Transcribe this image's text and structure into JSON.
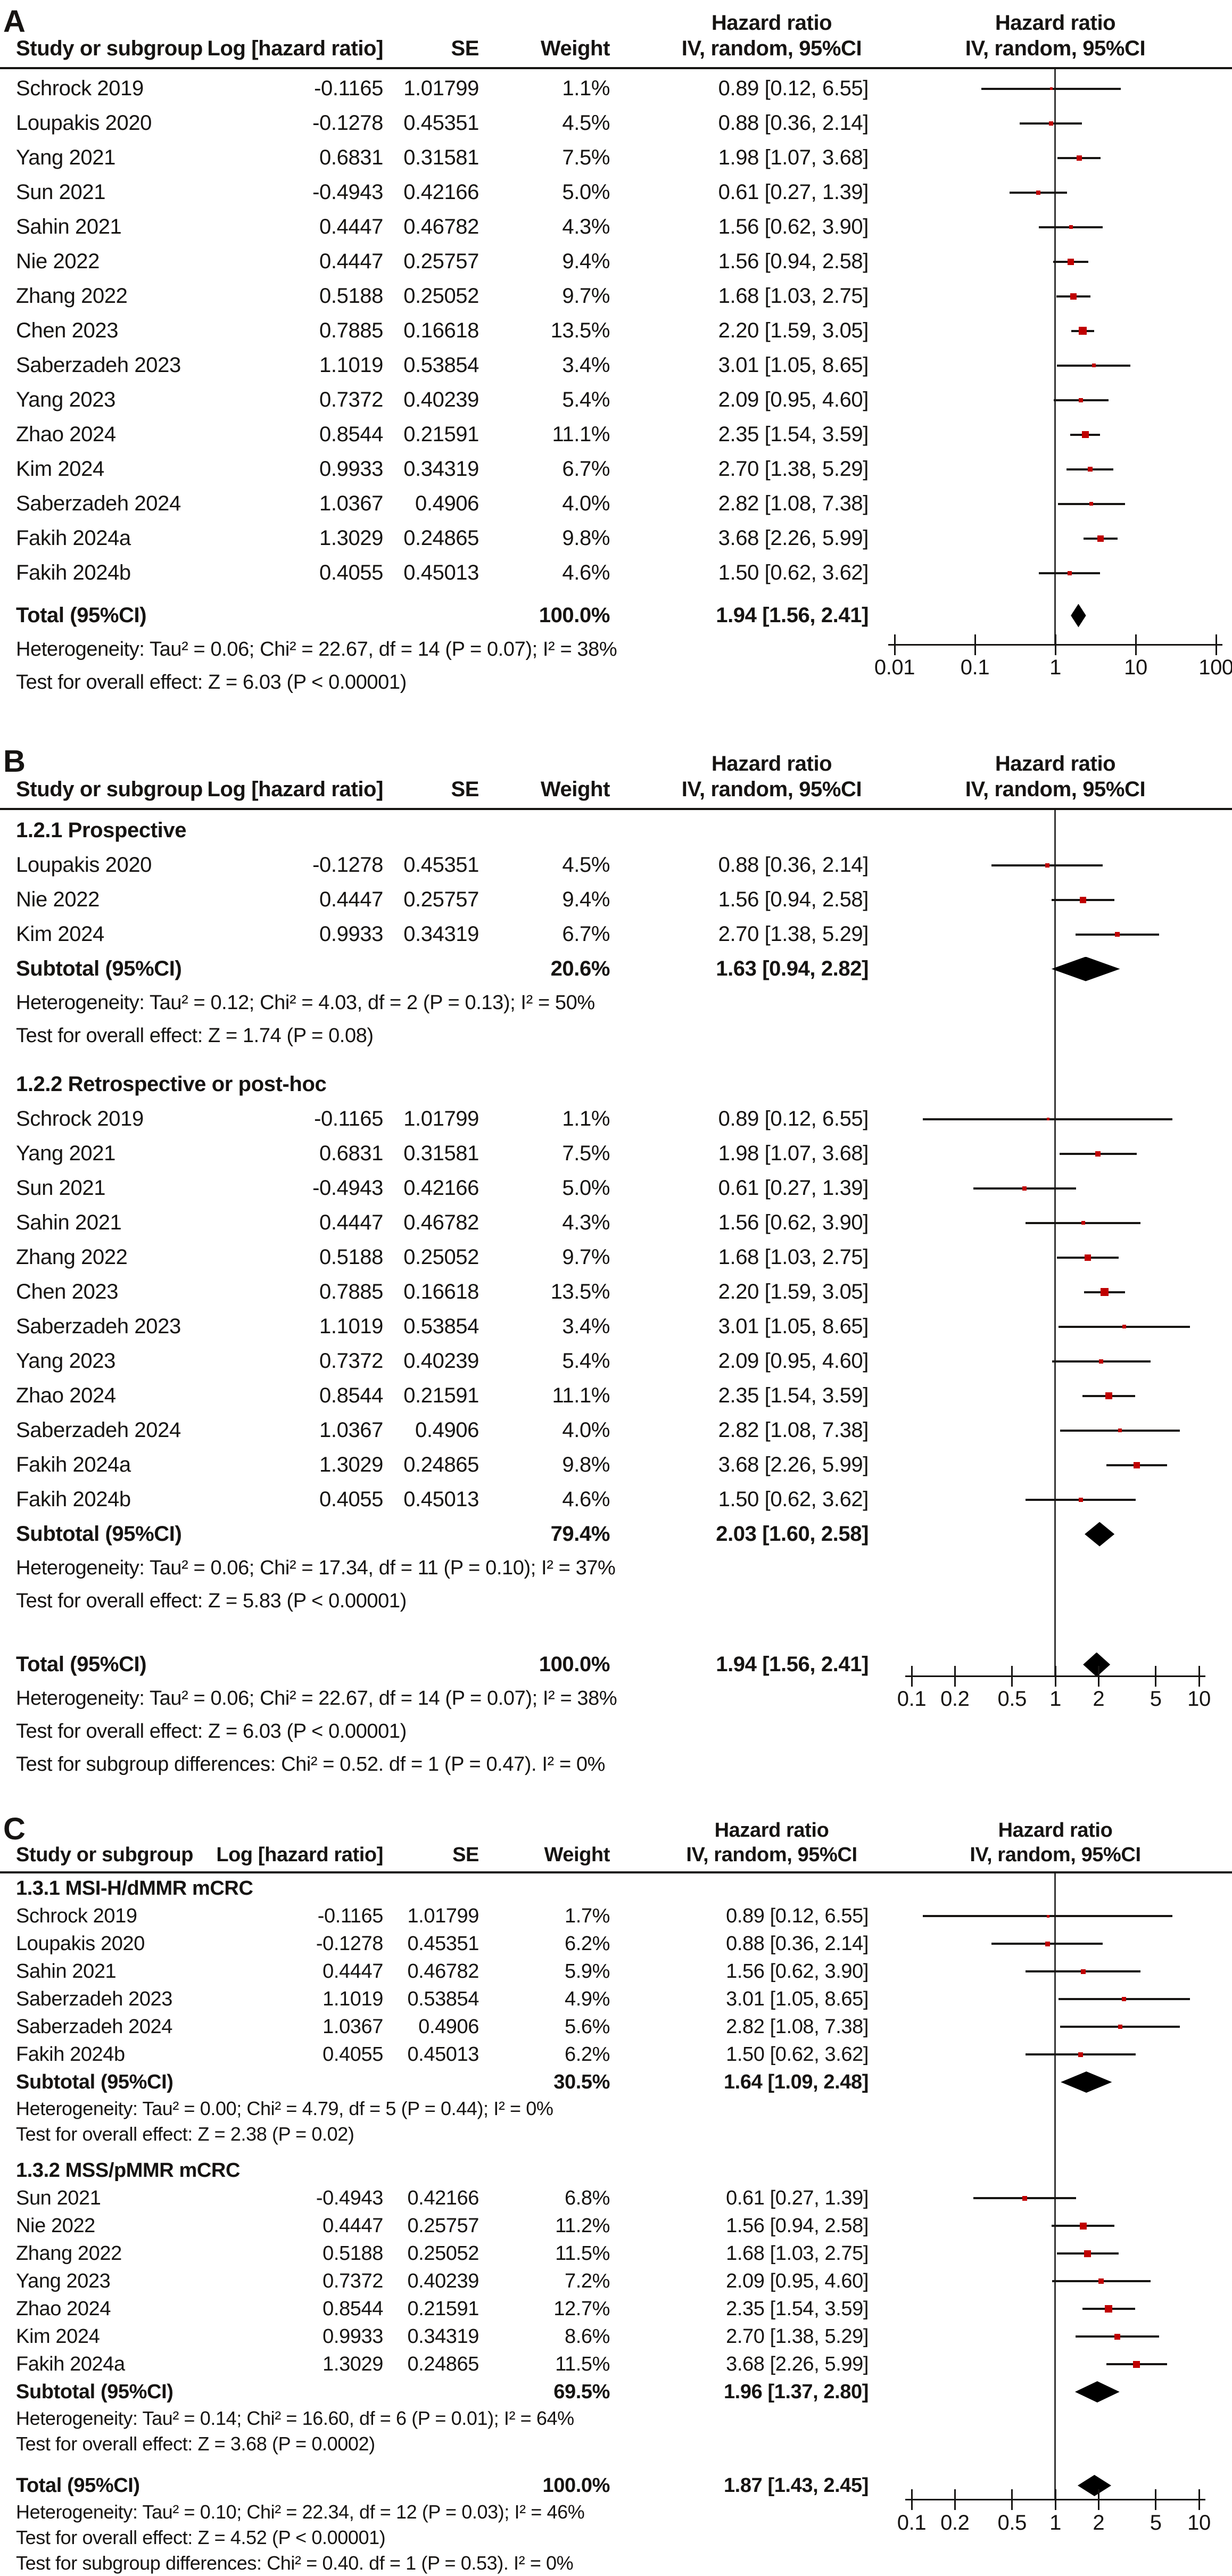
{
  "columns": {
    "study": "Study or subgroup",
    "log_hr": "Log [hazard ratio]",
    "se": "SE",
    "weight": "Weight",
    "hr_col_line1": "Hazard ratio",
    "hr_col_line2": "IV, random, 95%CI",
    "plot_col_line1": "Hazard ratio",
    "plot_col_line2": "IV, random, 95%CI"
  },
  "colors": {
    "marker": "#c00000",
    "diamond": "#000000",
    "line": "#161412",
    "center_line": "#333333"
  },
  "chart_data": [
    {
      "type": "scatter",
      "label": "A",
      "x_scale": "log",
      "axis_ticks": [
        0.01,
        0.1,
        1,
        10,
        100
      ],
      "axis_tick_labels": [
        "0.01",
        "0.1",
        "1",
        "10",
        "100"
      ],
      "sections": [
        {
          "title": null,
          "studies": [
            {
              "name": "Schrock 2019",
              "log_hr": "-0.1165",
              "se": "1.01799",
              "weight": "1.1%",
              "w": 1.1,
              "hr_text": "0.89 [0.12, 6.55]",
              "hr": 0.89,
              "lo": 0.12,
              "hi": 6.55
            },
            {
              "name": "Loupakis 2020",
              "log_hr": "-0.1278",
              "se": "0.45351",
              "weight": "4.5%",
              "w": 4.5,
              "hr_text": "0.88 [0.36, 2.14]",
              "hr": 0.88,
              "lo": 0.36,
              "hi": 2.14
            },
            {
              "name": "Yang 2021",
              "log_hr": "0.6831",
              "se": "0.31581",
              "weight": "7.5%",
              "w": 7.5,
              "hr_text": "1.98 [1.07, 3.68]",
              "hr": 1.98,
              "lo": 1.07,
              "hi": 3.68
            },
            {
              "name": "Sun 2021",
              "log_hr": "-0.4943",
              "se": "0.42166",
              "weight": "5.0%",
              "w": 5.0,
              "hr_text": "0.61 [0.27, 1.39]",
              "hr": 0.61,
              "lo": 0.27,
              "hi": 1.39
            },
            {
              "name": "Sahin 2021",
              "log_hr": "0.4447",
              "se": "0.46782",
              "weight": "4.3%",
              "w": 4.3,
              "hr_text": "1.56 [0.62, 3.90]",
              "hr": 1.56,
              "lo": 0.62,
              "hi": 3.9
            },
            {
              "name": "Nie 2022",
              "log_hr": "0.4447",
              "se": "0.25757",
              "weight": "9.4%",
              "w": 9.4,
              "hr_text": "1.56 [0.94, 2.58]",
              "hr": 1.56,
              "lo": 0.94,
              "hi": 2.58
            },
            {
              "name": "Zhang 2022",
              "log_hr": "0.5188",
              "se": "0.25052",
              "weight": "9.7%",
              "w": 9.7,
              "hr_text": "1.68 [1.03, 2.75]",
              "hr": 1.68,
              "lo": 1.03,
              "hi": 2.75
            },
            {
              "name": "Chen 2023",
              "log_hr": "0.7885",
              "se": "0.16618",
              "weight": "13.5%",
              "w": 13.5,
              "hr_text": "2.20 [1.59, 3.05]",
              "hr": 2.2,
              "lo": 1.59,
              "hi": 3.05
            },
            {
              "name": "Saberzadeh 2023",
              "log_hr": "1.1019",
              "se": "0.53854",
              "weight": "3.4%",
              "w": 3.4,
              "hr_text": "3.01 [1.05, 8.65]",
              "hr": 3.01,
              "lo": 1.05,
              "hi": 8.65
            },
            {
              "name": "Yang 2023",
              "log_hr": "0.7372",
              "se": "0.40239",
              "weight": "5.4%",
              "w": 5.4,
              "hr_text": "2.09 [0.95, 4.60]",
              "hr": 2.09,
              "lo": 0.95,
              "hi": 4.6
            },
            {
              "name": "Zhao 2024",
              "log_hr": "0.8544",
              "se": "0.21591",
              "weight": "11.1%",
              "w": 11.1,
              "hr_text": "2.35 [1.54, 3.59]",
              "hr": 2.35,
              "lo": 1.54,
              "hi": 3.59
            },
            {
              "name": "Kim 2024",
              "log_hr": "0.9933",
              "se": "0.34319",
              "weight": "6.7%",
              "w": 6.7,
              "hr_text": "2.70 [1.38, 5.29]",
              "hr": 2.7,
              "lo": 1.38,
              "hi": 5.29
            },
            {
              "name": "Saberzadeh 2024",
              "log_hr": "1.0367",
              "se": "0.4906",
              "weight": "4.0%",
              "w": 4.0,
              "hr_text": "2.82 [1.08, 7.38]",
              "hr": 2.82,
              "lo": 1.08,
              "hi": 7.38
            },
            {
              "name": "Fakih 2024a",
              "log_hr": "1.3029",
              "se": "0.24865",
              "weight": "9.8%",
              "w": 9.8,
              "hr_text": "3.68 [2.26, 5.99]",
              "hr": 3.68,
              "lo": 2.26,
              "hi": 5.99
            },
            {
              "name": "Fakih 2024b",
              "log_hr": "0.4055",
              "se": "0.45013",
              "weight": "4.6%",
              "w": 4.6,
              "hr_text": "1.50 [0.62, 3.62]",
              "hr": 1.5,
              "lo": 0.62,
              "hi": 3.62
            }
          ],
          "subtotal": null,
          "footnotes": []
        }
      ],
      "total": {
        "label": "Total (95%CI)",
        "weight": "100.0%",
        "hr_text": "1.94 [1.56, 2.41]",
        "hr": 1.94,
        "lo": 1.56,
        "hi": 2.41
      },
      "total_footnotes": [
        "Heterogeneity: Tau² = 0.06; Chi² = 22.67, df = 14 (P = 0.07); I² = 38%",
        "Test for overall effect: Z = 6.03 (P < 0.00001)"
      ]
    },
    {
      "type": "scatter",
      "label": "B",
      "x_scale": "log",
      "axis_ticks": [
        0.1,
        0.2,
        0.5,
        1,
        2,
        5,
        10
      ],
      "axis_tick_labels": [
        "0.1",
        "0.2",
        "0.5",
        "1",
        "2",
        "5",
        "10"
      ],
      "sections": [
        {
          "title": "1.2.1 Prospective",
          "studies": [
            {
              "name": "Loupakis 2020",
              "log_hr": "-0.1278",
              "se": "0.45351",
              "weight": "4.5%",
              "w": 4.5,
              "hr_text": "0.88 [0.36, 2.14]",
              "hr": 0.88,
              "lo": 0.36,
              "hi": 2.14
            },
            {
              "name": "Nie 2022",
              "log_hr": "0.4447",
              "se": "0.25757",
              "weight": "9.4%",
              "w": 9.4,
              "hr_text": "1.56 [0.94, 2.58]",
              "hr": 1.56,
              "lo": 0.94,
              "hi": 2.58
            },
            {
              "name": "Kim 2024",
              "log_hr": "0.9933",
              "se": "0.34319",
              "weight": "6.7%",
              "w": 6.7,
              "hr_text": "2.70 [1.38, 5.29]",
              "hr": 2.7,
              "lo": 1.38,
              "hi": 5.29
            }
          ],
          "subtotal": {
            "label": "Subtotal (95%CI)",
            "weight": "20.6%",
            "hr_text": "1.63 [0.94, 2.82]",
            "hr": 1.63,
            "lo": 0.94,
            "hi": 2.82
          },
          "footnotes": [
            "Heterogeneity: Tau² = 0.12; Chi² = 4.03, df = 2 (P = 0.13); I² = 50%",
            "Test for overall effect: Z = 1.74 (P = 0.08)"
          ]
        },
        {
          "title": "1.2.2 Retrospective or post-hoc",
          "studies": [
            {
              "name": "Schrock 2019",
              "log_hr": "-0.1165",
              "se": "1.01799",
              "weight": "1.1%",
              "w": 1.1,
              "hr_text": "0.89 [0.12, 6.55]",
              "hr": 0.89,
              "lo": 0.12,
              "hi": 6.55
            },
            {
              "name": "Yang 2021",
              "log_hr": "0.6831",
              "se": "0.31581",
              "weight": "7.5%",
              "w": 7.5,
              "hr_text": "1.98 [1.07, 3.68]",
              "hr": 1.98,
              "lo": 1.07,
              "hi": 3.68
            },
            {
              "name": "Sun 2021",
              "log_hr": "-0.4943",
              "se": "0.42166",
              "weight": "5.0%",
              "w": 5.0,
              "hr_text": "0.61 [0.27, 1.39]",
              "hr": 0.61,
              "lo": 0.27,
              "hi": 1.39
            },
            {
              "name": "Sahin 2021",
              "log_hr": "0.4447",
              "se": "0.46782",
              "weight": "4.3%",
              "w": 4.3,
              "hr_text": "1.56 [0.62, 3.90]",
              "hr": 1.56,
              "lo": 0.62,
              "hi": 3.9
            },
            {
              "name": "Zhang 2022",
              "log_hr": "0.5188",
              "se": "0.25052",
              "weight": "9.7%",
              "w": 9.7,
              "hr_text": "1.68 [1.03, 2.75]",
              "hr": 1.68,
              "lo": 1.03,
              "hi": 2.75
            },
            {
              "name": "Chen 2023",
              "log_hr": "0.7885",
              "se": "0.16618",
              "weight": "13.5%",
              "w": 13.5,
              "hr_text": "2.20 [1.59, 3.05]",
              "hr": 2.2,
              "lo": 1.59,
              "hi": 3.05
            },
            {
              "name": "Saberzadeh 2023",
              "log_hr": "1.1019",
              "se": "0.53854",
              "weight": "3.4%",
              "w": 3.4,
              "hr_text": "3.01 [1.05, 8.65]",
              "hr": 3.01,
              "lo": 1.05,
              "hi": 8.65
            },
            {
              "name": "Yang 2023",
              "log_hr": "0.7372",
              "se": "0.40239",
              "weight": "5.4%",
              "w": 5.4,
              "hr_text": "2.09 [0.95, 4.60]",
              "hr": 2.09,
              "lo": 0.95,
              "hi": 4.6
            },
            {
              "name": "Zhao 2024",
              "log_hr": "0.8544",
              "se": "0.21591",
              "weight": "11.1%",
              "w": 11.1,
              "hr_text": "2.35 [1.54, 3.59]",
              "hr": 2.35,
              "lo": 1.54,
              "hi": 3.59
            },
            {
              "name": "Saberzadeh 2024",
              "log_hr": "1.0367",
              "se": "0.4906",
              "weight": "4.0%",
              "w": 4.0,
              "hr_text": "2.82 [1.08, 7.38]",
              "hr": 2.82,
              "lo": 1.08,
              "hi": 7.38
            },
            {
              "name": "Fakih 2024a",
              "log_hr": "1.3029",
              "se": "0.24865",
              "weight": "9.8%",
              "w": 9.8,
              "hr_text": "3.68 [2.26, 5.99]",
              "hr": 3.68,
              "lo": 2.26,
              "hi": 5.99
            },
            {
              "name": "Fakih 2024b",
              "log_hr": "0.4055",
              "se": "0.45013",
              "weight": "4.6%",
              "w": 4.6,
              "hr_text": "1.50 [0.62, 3.62]",
              "hr": 1.5,
              "lo": 0.62,
              "hi": 3.62
            }
          ],
          "subtotal": {
            "label": "Subtotal (95%CI)",
            "weight": "79.4%",
            "hr_text": "2.03 [1.60, 2.58]",
            "hr": 2.03,
            "lo": 1.6,
            "hi": 2.58
          },
          "footnotes": [
            "Heterogeneity: Tau² = 0.06; Chi² = 17.34, df = 11 (P = 0.10); I² = 37%",
            "Test for overall effect: Z = 5.83 (P < 0.00001)"
          ]
        }
      ],
      "total": {
        "label": "Total (95%CI)",
        "weight": "100.0%",
        "hr_text": "1.94 [1.56, 2.41]",
        "hr": 1.94,
        "lo": 1.56,
        "hi": 2.41
      },
      "total_footnotes": [
        "Heterogeneity: Tau² = 0.06; Chi² = 22.67, df = 14 (P = 0.07); I² = 38%",
        "Test for overall effect: Z = 6.03 (P < 0.00001)",
        "Test for subgroup differences: Chi² = 0.52. df = 1 (P = 0.47). I² = 0%"
      ]
    },
    {
      "type": "scatter",
      "label": "C",
      "x_scale": "log",
      "axis_ticks": [
        0.1,
        0.2,
        0.5,
        1,
        2,
        5,
        10
      ],
      "axis_tick_labels": [
        "0.1",
        "0.2",
        "0.5",
        "1",
        "2",
        "5",
        "10"
      ],
      "sections": [
        {
          "title": "1.3.1 MSI-H/dMMR mCRC",
          "studies": [
            {
              "name": "Schrock 2019",
              "log_hr": "-0.1165",
              "se": "1.01799",
              "weight": "1.7%",
              "w": 1.7,
              "hr_text": "0.89 [0.12, 6.55]",
              "hr": 0.89,
              "lo": 0.12,
              "hi": 6.55
            },
            {
              "name": "Loupakis 2020",
              "log_hr": "-0.1278",
              "se": "0.45351",
              "weight": "6.2%",
              "w": 6.2,
              "hr_text": "0.88 [0.36, 2.14]",
              "hr": 0.88,
              "lo": 0.36,
              "hi": 2.14
            },
            {
              "name": "Sahin 2021",
              "log_hr": "0.4447",
              "se": "0.46782",
              "weight": "5.9%",
              "w": 5.9,
              "hr_text": "1.56 [0.62, 3.90]",
              "hr": 1.56,
              "lo": 0.62,
              "hi": 3.9
            },
            {
              "name": "Saberzadeh 2023",
              "log_hr": "1.1019",
              "se": "0.53854",
              "weight": "4.9%",
              "w": 4.9,
              "hr_text": "3.01 [1.05, 8.65]",
              "hr": 3.01,
              "lo": 1.05,
              "hi": 8.65
            },
            {
              "name": "Saberzadeh 2024",
              "log_hr": "1.0367",
              "se": "0.4906",
              "weight": "5.6%",
              "w": 5.6,
              "hr_text": "2.82 [1.08, 7.38]",
              "hr": 2.82,
              "lo": 1.08,
              "hi": 7.38
            },
            {
              "name": "Fakih 2024b",
              "log_hr": "0.4055",
              "se": "0.45013",
              "weight": "6.2%",
              "w": 6.2,
              "hr_text": "1.50 [0.62, 3.62]",
              "hr": 1.5,
              "lo": 0.62,
              "hi": 3.62
            }
          ],
          "subtotal": {
            "label": "Subtotal (95%CI)",
            "weight": "30.5%",
            "hr_text": "1.64 [1.09, 2.48]",
            "hr": 1.64,
            "lo": 1.09,
            "hi": 2.48
          },
          "footnotes": [
            "Heterogeneity: Tau² = 0.00; Chi² = 4.79, df = 5 (P = 0.44); I² = 0%",
            "Test for overall effect: Z = 2.38 (P = 0.02)"
          ]
        },
        {
          "title": "1.3.2 MSS/pMMR mCRC",
          "studies": [
            {
              "name": "Sun 2021",
              "log_hr": "-0.4943",
              "se": "0.42166",
              "weight": "6.8%",
              "w": 6.8,
              "hr_text": "0.61 [0.27, 1.39]",
              "hr": 0.61,
              "lo": 0.27,
              "hi": 1.39
            },
            {
              "name": "Nie 2022",
              "log_hr": "0.4447",
              "se": "0.25757",
              "weight": "11.2%",
              "w": 11.2,
              "hr_text": "1.56 [0.94, 2.58]",
              "hr": 1.56,
              "lo": 0.94,
              "hi": 2.58
            },
            {
              "name": "Zhang 2022",
              "log_hr": "0.5188",
              "se": "0.25052",
              "weight": "11.5%",
              "w": 11.5,
              "hr_text": "1.68 [1.03, 2.75]",
              "hr": 1.68,
              "lo": 1.03,
              "hi": 2.75
            },
            {
              "name": "Yang 2023",
              "log_hr": "0.7372",
              "se": "0.40239",
              "weight": "7.2%",
              "w": 7.2,
              "hr_text": "2.09 [0.95, 4.60]",
              "hr": 2.09,
              "lo": 0.95,
              "hi": 4.6
            },
            {
              "name": "Zhao 2024",
              "log_hr": "0.8544",
              "se": "0.21591",
              "weight": "12.7%",
              "w": 12.7,
              "hr_text": "2.35 [1.54, 3.59]",
              "hr": 2.35,
              "lo": 1.54,
              "hi": 3.59
            },
            {
              "name": "Kim 2024",
              "log_hr": "0.9933",
              "se": "0.34319",
              "weight": "8.6%",
              "w": 8.6,
              "hr_text": "2.70 [1.38, 5.29]",
              "hr": 2.7,
              "lo": 1.38,
              "hi": 5.29
            },
            {
              "name": "Fakih 2024a",
              "log_hr": "1.3029",
              "se": "0.24865",
              "weight": "11.5%",
              "w": 11.5,
              "hr_text": "3.68 [2.26, 5.99]",
              "hr": 3.68,
              "lo": 2.26,
              "hi": 5.99
            }
          ],
          "subtotal": {
            "label": "Subtotal (95%CI)",
            "weight": "69.5%",
            "hr_text": "1.96 [1.37, 2.80]",
            "hr": 1.96,
            "lo": 1.37,
            "hi": 2.8
          },
          "footnotes": [
            "Heterogeneity: Tau² = 0.14; Chi² = 16.60, df = 6 (P = 0.01); I² = 64%",
            "Test for overall effect: Z = 3.68 (P = 0.0002)"
          ]
        }
      ],
      "total": {
        "label": "Total (95%CI)",
        "weight": "100.0%",
        "hr_text": "1.87 [1.43, 2.45]",
        "hr": 1.87,
        "lo": 1.43,
        "hi": 2.45
      },
      "total_footnotes": [
        "Heterogeneity: Tau² = 0.10; Chi² = 22.34, df = 12 (P = 0.03); I² = 46%",
        "Test for overall effect: Z = 4.52 (P < 0.00001)",
        "Test for subgroup differences: Chi² = 0.40. df = 1 (P = 0.53). I² = 0%"
      ]
    }
  ]
}
